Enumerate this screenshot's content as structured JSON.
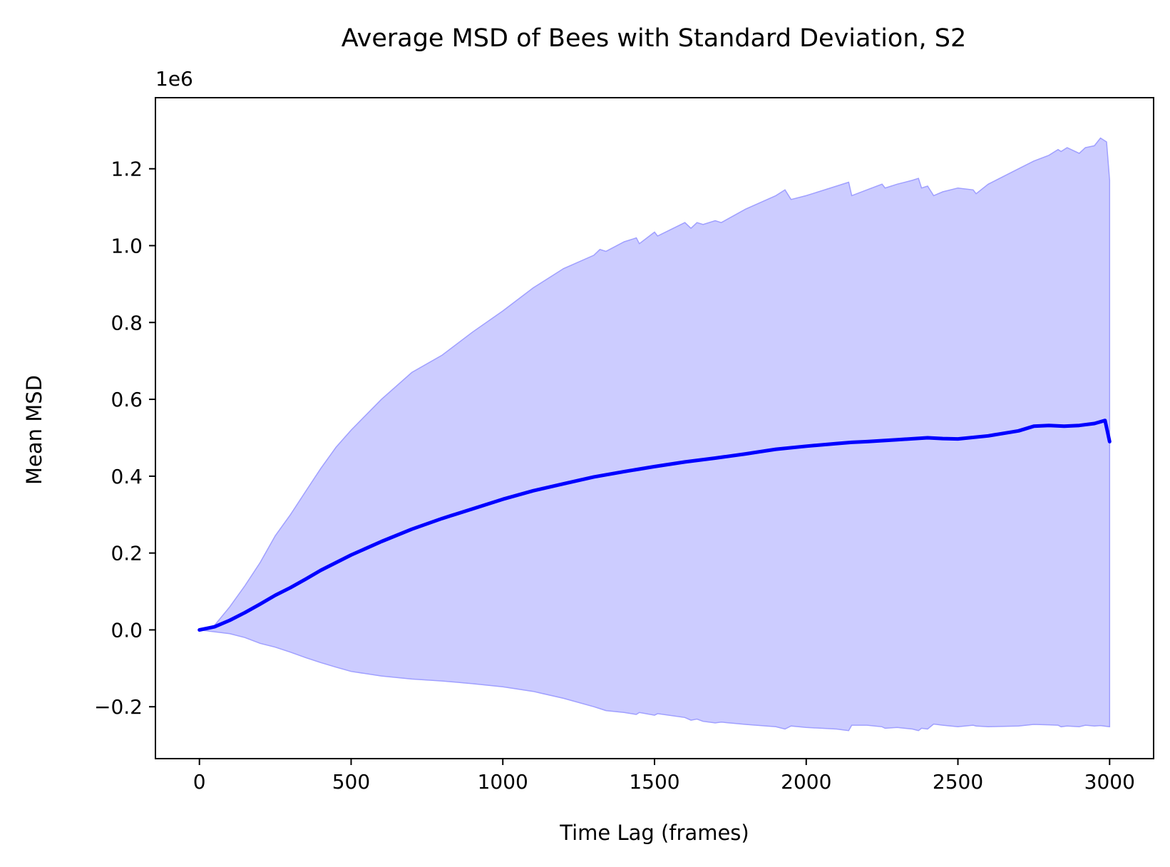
{
  "chart_data": {
    "type": "line",
    "title": "Average MSD of Bees with Standard Deviation, S2",
    "xlabel": "Time Lag (frames)",
    "ylabel": "Mean MSD",
    "y_offset_label": "1e6",
    "xlim": [
      -145,
      3145
    ],
    "ylim": [
      -335000,
      1385000
    ],
    "x_ticks": [
      0,
      500,
      1000,
      1500,
      2000,
      2500,
      3000
    ],
    "x_tick_labels": [
      "0",
      "500",
      "1000",
      "1500",
      "2000",
      "2500",
      "3000"
    ],
    "y_ticks": [
      -200000,
      0,
      200000,
      400000,
      600000,
      800000,
      1000000,
      1200000
    ],
    "y_tick_labels": [
      "−0.2",
      "0.0",
      "0.2",
      "0.4",
      "0.6",
      "0.8",
      "1.0",
      "1.2"
    ],
    "grid": false,
    "colors": {
      "line": "#0000ff",
      "band_fill": "#ccccff",
      "band_edge": "#9f9fff"
    },
    "series": [
      {
        "x": [
          0,
          50,
          100,
          150,
          200,
          250,
          300,
          350,
          400,
          450,
          500,
          600,
          700,
          800,
          900,
          1000,
          1100,
          1200,
          1300,
          1400,
          1500,
          1600,
          1700,
          1800,
          1900,
          2000,
          2100,
          2150,
          2200,
          2300,
          2400,
          2450,
          2500,
          2600,
          2700,
          2750,
          2800,
          2850,
          2900,
          2950,
          2985,
          3000
        ],
        "y": [
          0,
          8000,
          25000,
          45000,
          67000,
          90000,
          110000,
          132000,
          155000,
          175000,
          195000,
          230000,
          262000,
          290000,
          315000,
          340000,
          362000,
          380000,
          398000,
          412000,
          425000,
          437000,
          447000,
          458000,
          470000,
          478000,
          485000,
          488000,
          490000,
          495000,
          500000,
          498000,
          497000,
          505000,
          518000,
          530000,
          532000,
          530000,
          532000,
          537000,
          545000,
          490000
        ]
      }
    ],
    "band": {
      "x": [
        0,
        50,
        100,
        150,
        200,
        250,
        300,
        350,
        400,
        450,
        500,
        600,
        700,
        800,
        900,
        1000,
        1100,
        1200,
        1300,
        1320,
        1340,
        1400,
        1440,
        1450,
        1500,
        1510,
        1600,
        1620,
        1640,
        1660,
        1700,
        1720,
        1800,
        1900,
        1930,
        1950,
        2000,
        2100,
        2140,
        2150,
        2200,
        2250,
        2260,
        2300,
        2350,
        2370,
        2380,
        2400,
        2420,
        2450,
        2500,
        2550,
        2560,
        2600,
        2700,
        2750,
        2800,
        2830,
        2840,
        2860,
        2900,
        2920,
        2950,
        2970,
        2990,
        3000
      ],
      "upper": [
        0,
        12000,
        60000,
        115000,
        175000,
        245000,
        300000,
        360000,
        420000,
        475000,
        520000,
        600000,
        670000,
        715000,
        775000,
        830000,
        890000,
        940000,
        975000,
        990000,
        985000,
        1010000,
        1020000,
        1005000,
        1035000,
        1025000,
        1060000,
        1045000,
        1060000,
        1055000,
        1065000,
        1060000,
        1095000,
        1130000,
        1145000,
        1120000,
        1130000,
        1155000,
        1165000,
        1130000,
        1145000,
        1160000,
        1150000,
        1160000,
        1170000,
        1175000,
        1150000,
        1155000,
        1130000,
        1140000,
        1150000,
        1145000,
        1135000,
        1160000,
        1200000,
        1220000,
        1235000,
        1250000,
        1245000,
        1255000,
        1240000,
        1255000,
        1260000,
        1280000,
        1270000,
        1170000
      ],
      "lower": [
        0,
        -5000,
        -10000,
        -20000,
        -35000,
        -45000,
        -58000,
        -72000,
        -85000,
        -97000,
        -108000,
        -120000,
        -128000,
        -133000,
        -140000,
        -148000,
        -160000,
        -178000,
        -200000,
        -205000,
        -210000,
        -215000,
        -220000,
        -215000,
        -222000,
        -218000,
        -228000,
        -235000,
        -232000,
        -238000,
        -242000,
        -240000,
        -246000,
        -252000,
        -258000,
        -250000,
        -254000,
        -258000,
        -262000,
        -248000,
        -248000,
        -252000,
        -256000,
        -254000,
        -258000,
        -262000,
        -256000,
        -258000,
        -245000,
        -248000,
        -252000,
        -248000,
        -250000,
        -252000,
        -250000,
        -246000,
        -247000,
        -248000,
        -252000,
        -250000,
        -252000,
        -248000,
        -250000,
        -249000,
        -251000,
        -252000
      ]
    }
  }
}
